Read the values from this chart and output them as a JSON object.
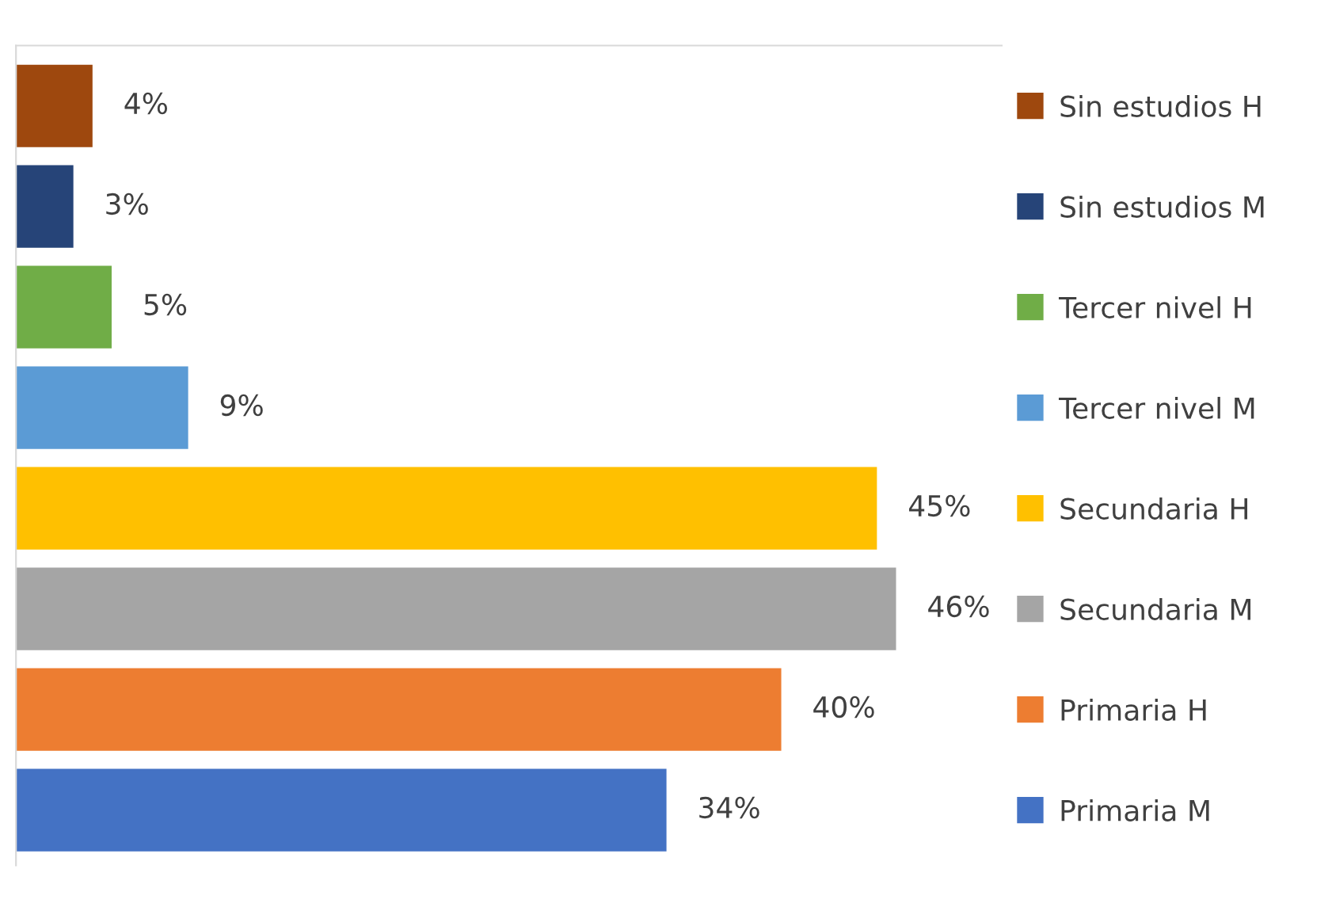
{
  "chart_data": {
    "type": "bar",
    "orientation": "horizontal",
    "categories": [
      "Sin estudios H",
      "Sin estudios M",
      "Tercer nivel H",
      "Tercer nivel M",
      "Secundaria H",
      "Secundaria M",
      "Primaria H",
      "Primaria M"
    ],
    "tick_labels": "y",
    "grid": false,
    "values": [
      4,
      3,
      5,
      9,
      45,
      46,
      40,
      34
    ],
    "colors": [
      "#9e480e",
      "#264478",
      "#70ad47",
      "#5b9bd5",
      "#ffc000",
      "#a5a5a5",
      "#ed7d31",
      "#4472c4"
    ],
    "value_labels": [
      "4%",
      "3%",
      "5%",
      "9%",
      "45%",
      "46%",
      "40%",
      "34%"
    ]
  }
}
